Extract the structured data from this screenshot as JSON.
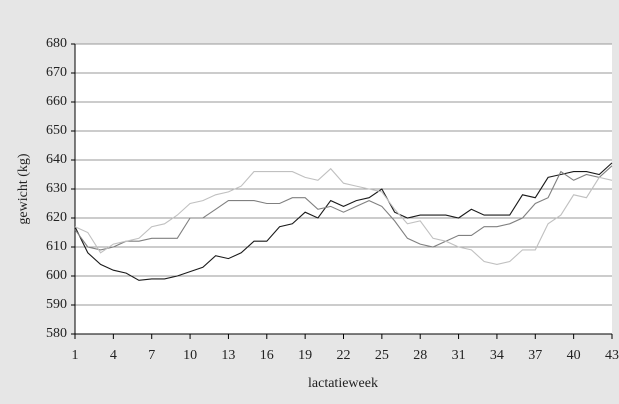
{
  "chart_data": {
    "type": "line",
    "x_label": "lactatieweek",
    "y_label": "gewicht (kg)",
    "x": [
      1,
      2,
      3,
      4,
      5,
      6,
      7,
      8,
      9,
      10,
      11,
      12,
      13,
      14,
      15,
      16,
      17,
      18,
      19,
      20,
      21,
      22,
      23,
      24,
      25,
      26,
      27,
      28,
      29,
      30,
      31,
      32,
      33,
      34,
      35,
      36,
      37,
      38,
      39,
      40,
      41,
      42,
      43
    ],
    "xlim": [
      1,
      43
    ],
    "xticks": [
      1,
      4,
      7,
      10,
      13,
      16,
      19,
      22,
      25,
      28,
      31,
      34,
      37,
      40,
      43
    ],
    "ylim": [
      580,
      680
    ],
    "yticks": [
      580,
      590,
      600,
      610,
      620,
      630,
      640,
      650,
      660,
      670,
      680
    ],
    "grid": true,
    "series": [
      {
        "color": "#1a1a1a",
        "values": [
          617,
          608,
          604,
          602,
          601,
          598.5,
          599,
          599,
          600,
          601.5,
          603,
          607,
          606,
          608,
          612,
          612,
          617,
          618,
          622,
          620,
          626,
          624,
          626,
          627,
          630,
          622,
          620,
          621,
          621,
          621,
          620,
          623,
          621,
          621,
          621,
          628,
          627,
          634,
          635,
          636,
          636,
          635,
          639
        ]
      },
      {
        "color": "#808080",
        "values": [
          616,
          610,
          609,
          610,
          612,
          612,
          613,
          613,
          613,
          620,
          620,
          623,
          626,
          626,
          626,
          625,
          625,
          627,
          627,
          623,
          624,
          622,
          624,
          626,
          624,
          619,
          613,
          611,
          610,
          612,
          614,
          614,
          617,
          617,
          618,
          620,
          625,
          627,
          636,
          633,
          635,
          634,
          638
        ]
      },
      {
        "color": "#c0c0c0",
        "values": [
          617,
          615,
          608,
          611,
          612,
          613,
          617,
          618,
          621,
          625,
          626,
          628,
          629,
          631,
          636,
          636,
          636,
          636,
          634,
          633,
          637,
          632,
          631,
          630,
          629,
          623,
          618,
          619,
          613,
          612,
          610,
          609,
          605,
          604,
          605,
          609,
          609,
          618,
          621,
          628,
          627,
          634,
          633
        ]
      }
    ]
  }
}
